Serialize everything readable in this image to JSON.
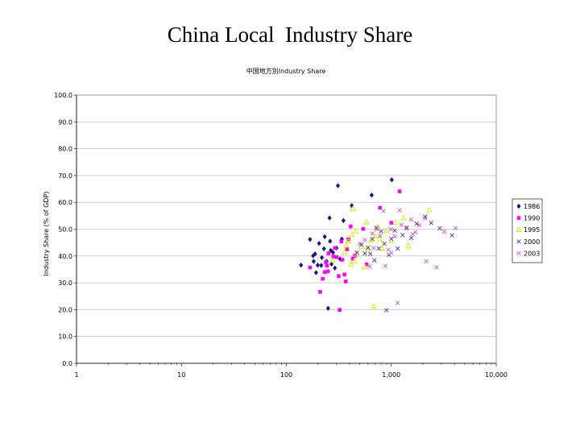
{
  "slide": {
    "title": "China Local  Industry Share"
  },
  "chart_data": {
    "type": "scatter",
    "title": "中国地方別Industry Share",
    "xlabel": "",
    "ylabel": "Industry Share (% of GDP)",
    "x_scale": "log",
    "xlim": [
      1,
      10000
    ],
    "ylim": [
      0,
      100
    ],
    "x_tick_labels": [
      "1",
      "10",
      "100",
      "1,000",
      "10,000"
    ],
    "y_tick_labels": [
      "0.0",
      "10.0",
      "20.0",
      "30.0",
      "40.0",
      "50.0",
      "60.0",
      "70.0",
      "80.0",
      "90.0",
      "100.0"
    ],
    "grid": "horizontal",
    "legend_position": "right",
    "series": [
      {
        "name": "1986",
        "marker": "diamond",
        "color": "#1a1a80",
        "points": [
          [
            138,
            36.6
          ],
          [
            168,
            46.2
          ],
          [
            180,
            40.1
          ],
          [
            182,
            38.0
          ],
          [
            188,
            40.8
          ],
          [
            192,
            33.8
          ],
          [
            199,
            36.6
          ],
          [
            205,
            44.7
          ],
          [
            215,
            36.5
          ],
          [
            218,
            39.4
          ],
          [
            228,
            42.7
          ],
          [
            232,
            47.2
          ],
          [
            242,
            38.0
          ],
          [
            250,
            20.5
          ],
          [
            258,
            54.2
          ],
          [
            261,
            45.5
          ],
          [
            265,
            42.1
          ],
          [
            269,
            37.0
          ],
          [
            278,
            41.3
          ],
          [
            290,
            35.5
          ],
          [
            300,
            43.0
          ],
          [
            310,
            66.2
          ],
          [
            325,
            38.9
          ],
          [
            338,
            46.3
          ],
          [
            350,
            53.2
          ],
          [
            420,
            58.8
          ],
          [
            650,
            62.7
          ],
          [
            1010,
            68.4
          ]
        ]
      },
      {
        "name": "1990",
        "marker": "square",
        "color": "#ff00ff",
        "points": [
          [
            168,
            35.7
          ],
          [
            210,
            26.6
          ],
          [
            222,
            31.5
          ],
          [
            232,
            34.0
          ],
          [
            238,
            37.7
          ],
          [
            244,
            36.4
          ],
          [
            249,
            34.3
          ],
          [
            252,
            41.0
          ],
          [
            280,
            39.8
          ],
          [
            290,
            43.0
          ],
          [
            302,
            39.6
          ],
          [
            315,
            32.5
          ],
          [
            322,
            19.9
          ],
          [
            334,
            45.4
          ],
          [
            342,
            38.6
          ],
          [
            358,
            33.1
          ],
          [
            368,
            30.5
          ],
          [
            378,
            42.5
          ],
          [
            390,
            46.2
          ],
          [
            410,
            51.0
          ],
          [
            430,
            39.0
          ],
          [
            450,
            40.1
          ],
          [
            540,
            50.1
          ],
          [
            580,
            36.9
          ],
          [
            780,
            58.0
          ],
          [
            1000,
            52.4
          ],
          [
            1200,
            64.1
          ]
        ]
      },
      {
        "name": "1995",
        "marker": "triangle",
        "color": "#ccee00",
        "points": [
          [
            275,
            38.3
          ],
          [
            360,
            41.4
          ],
          [
            375,
            44.0
          ],
          [
            390,
            45.6
          ],
          [
            410,
            37.0
          ],
          [
            420,
            48.0
          ],
          [
            432,
            57.7
          ],
          [
            442,
            38.1
          ],
          [
            455,
            49.3
          ],
          [
            470,
            40.6
          ],
          [
            520,
            43.5
          ],
          [
            560,
            36.0
          ],
          [
            580,
            52.6
          ],
          [
            600,
            42.8
          ],
          [
            640,
            45.9
          ],
          [
            680,
            21.3
          ],
          [
            700,
            47.4
          ],
          [
            740,
            50.9
          ],
          [
            780,
            46.3
          ],
          [
            820,
            42.8
          ],
          [
            900,
            49.4
          ],
          [
            1000,
            45.7
          ],
          [
            1100,
            52.5
          ],
          [
            1300,
            54.2
          ],
          [
            1450,
            43.7
          ],
          [
            2300,
            57.2
          ]
        ]
      },
      {
        "name": "2000",
        "marker": "x",
        "color": "#553399",
        "points": [
          [
            470,
            41.3
          ],
          [
            520,
            44.2
          ],
          [
            560,
            41.0
          ],
          [
            600,
            43.1
          ],
          [
            630,
            40.8
          ],
          [
            660,
            46.3
          ],
          [
            690,
            38.4
          ],
          [
            720,
            50.5
          ],
          [
            760,
            42.8
          ],
          [
            800,
            49.2
          ],
          [
            860,
            44.6
          ],
          [
            900,
            19.8
          ],
          [
            950,
            40.4
          ],
          [
            1000,
            46.4
          ],
          [
            1080,
            49.5
          ],
          [
            1150,
            42.8
          ],
          [
            1280,
            47.8
          ],
          [
            1400,
            50.6
          ],
          [
            1550,
            46.7
          ],
          [
            1750,
            52.0
          ],
          [
            2100,
            54.7
          ],
          [
            2400,
            52.3
          ],
          [
            2900,
            50.3
          ],
          [
            3800,
            47.7
          ]
        ]
      },
      {
        "name": "2003",
        "marker": "x",
        "color": "#cc55cc",
        "points": [
          [
            500,
            44.5
          ],
          [
            560,
            46.0
          ],
          [
            620,
            36.2
          ],
          [
            680,
            43.0
          ],
          [
            730,
            50.0
          ],
          [
            780,
            47.5
          ],
          [
            840,
            56.8
          ],
          [
            880,
            36.3
          ],
          [
            940,
            42.3
          ],
          [
            1000,
            41.2
          ],
          [
            1080,
            47.3
          ],
          [
            1150,
            22.5
          ],
          [
            1250,
            51.6
          ],
          [
            1400,
            50.2
          ],
          [
            1550,
            53.6
          ],
          [
            1700,
            48.9
          ],
          [
            1850,
            51.5
          ],
          [
            2100,
            54.0
          ],
          [
            2150,
            38.0
          ],
          [
            2700,
            35.8
          ],
          [
            3200,
            49.1
          ],
          [
            4100,
            50.4
          ],
          [
            1200,
            57.0
          ],
          [
            1600,
            48.1
          ],
          [
            660,
            48.4
          ],
          [
            990,
            50.0
          ]
        ]
      }
    ]
  }
}
